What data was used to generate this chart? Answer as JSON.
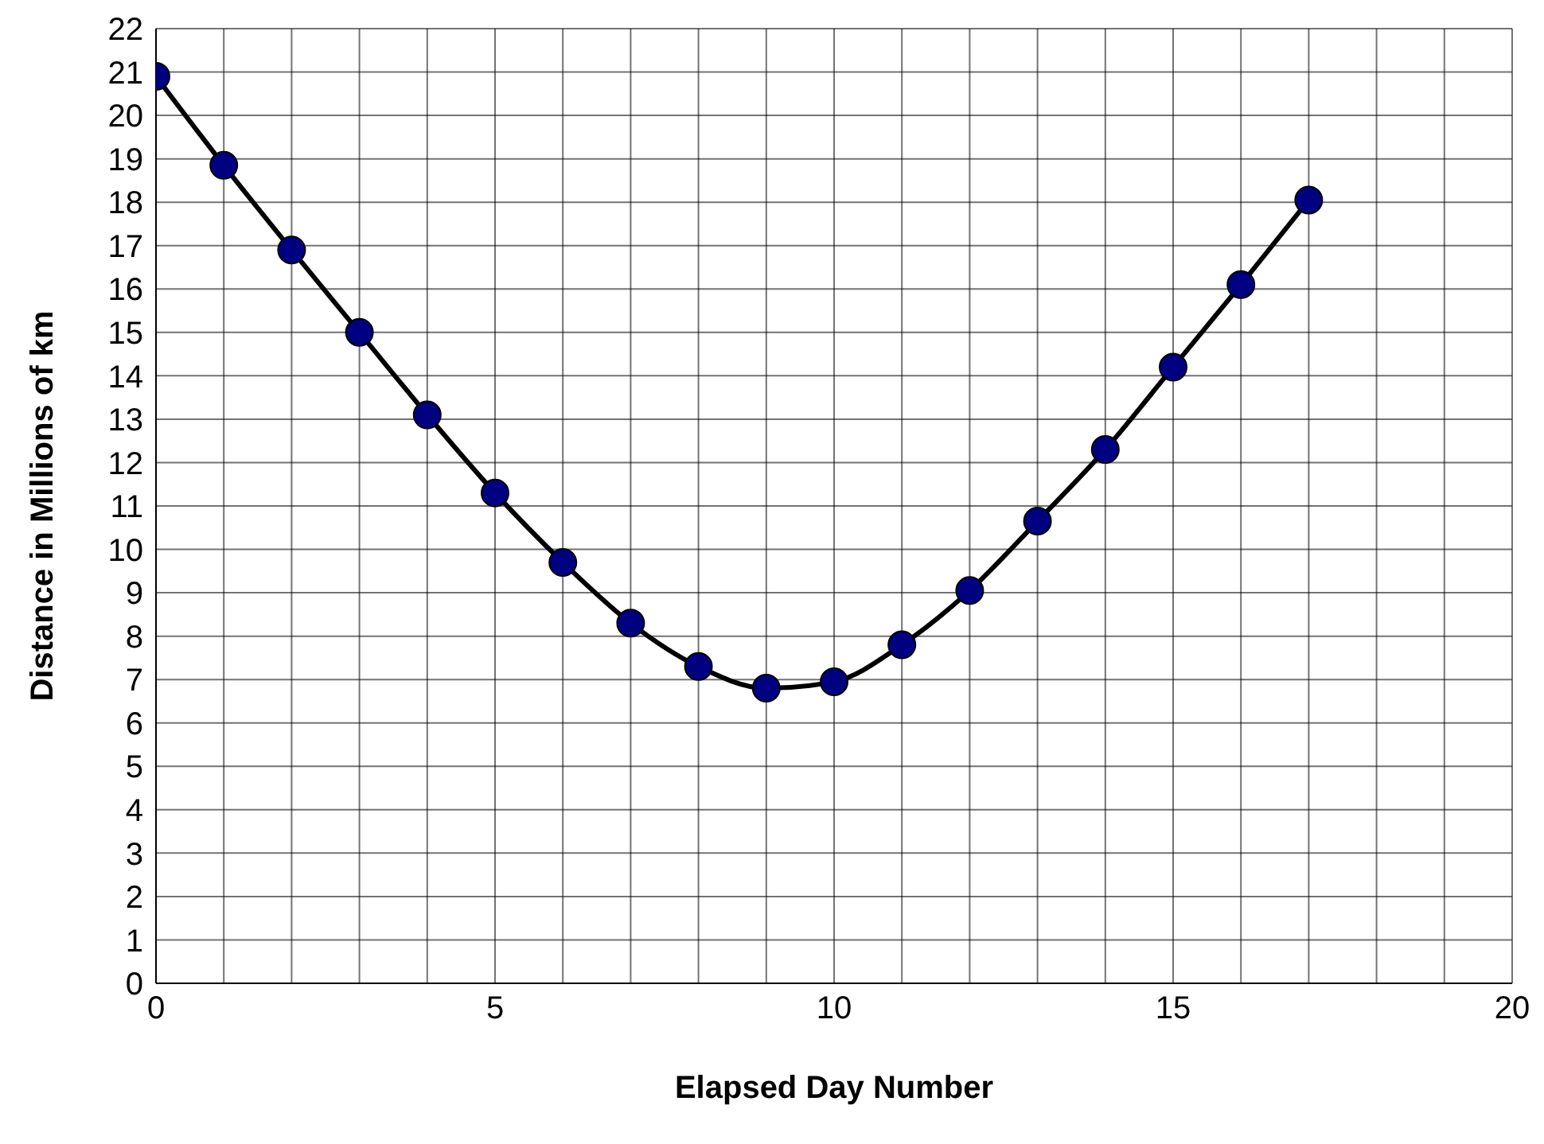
{
  "chart_data": {
    "type": "line",
    "xlabel": "Elapsed Day Number",
    "ylabel": "Distance in Millions of km",
    "x": [
      0,
      1,
      2,
      3,
      4,
      5,
      6,
      7,
      8,
      9,
      10,
      11,
      12,
      13,
      14,
      15,
      16,
      17
    ],
    "series": [
      {
        "color": "#000080",
        "values": [
          20.9,
          18.85,
          16.9,
          15.0,
          13.1,
          11.3,
          9.7,
          8.3,
          7.3,
          6.8,
          6.95,
          7.8,
          9.05,
          10.65,
          12.3,
          14.2,
          16.1,
          18.05
        ]
      }
    ],
    "xlim": [
      0,
      20
    ],
    "xticks": [
      0,
      {
        "value": 1,
        "label": null
      },
      {
        "value": 2,
        "label": null
      },
      {
        "value": 3,
        "label": null
      },
      {
        "value": 4,
        "label": null
      },
      5,
      {
        "value": 6,
        "label": null
      },
      {
        "value": 7,
        "label": null
      },
      {
        "value": 8,
        "label": null
      },
      {
        "value": 9,
        "label": null
      },
      10,
      {
        "value": 11,
        "label": null
      },
      {
        "value": 12,
        "label": null
      },
      {
        "value": 13,
        "label": null
      },
      {
        "value": 14,
        "label": null
      },
      15,
      {
        "value": 16,
        "label": null
      },
      {
        "value": 17,
        "label": null
      },
      {
        "value": 18,
        "label": null
      },
      {
        "value": 19,
        "label": null
      },
      20
    ],
    "ylim": [
      0,
      22
    ],
    "yticks": [
      0,
      1,
      2,
      3,
      4,
      5,
      6,
      7,
      8,
      9,
      10,
      11,
      12,
      13,
      14,
      15,
      16,
      17,
      18,
      19,
      20,
      21,
      22
    ],
    "grid": true,
    "legend": false,
    "marker": "circle",
    "line_style": "solid"
  }
}
